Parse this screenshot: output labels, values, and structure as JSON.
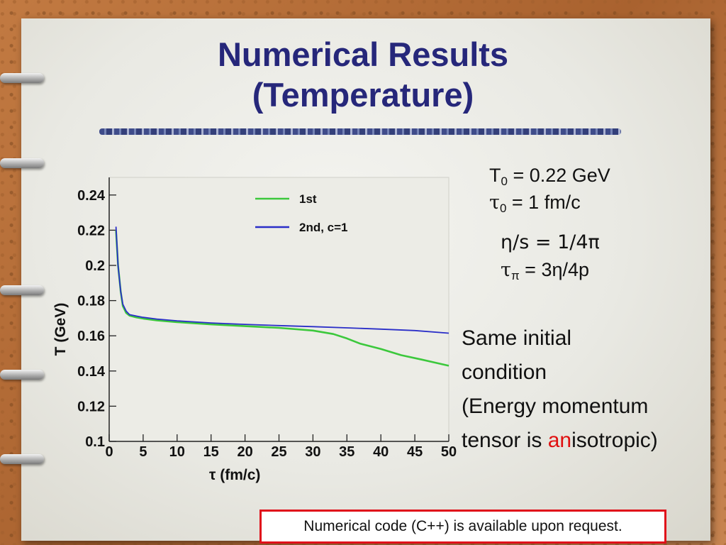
{
  "slide": {
    "title_line1": "Numerical Results",
    "title_line2": "(Temperature)",
    "params": {
      "T0_symbol": "T",
      "T0_sub": "0",
      "T0_value": " = 0.22 GeV",
      "tau0_symbol": "τ",
      "tau0_sub": "0",
      "tau0_value": " = 1 fm/c",
      "eta_s": "η/s = 1/4π",
      "tau_pi_symbol": "τ",
      "tau_pi_sub": "π",
      "tau_pi_value": " = 3η/4p"
    },
    "note": {
      "line1": "Same initial",
      "line2": "condition",
      "line3": "(Energy momentum",
      "line4_pre": "tensor is ",
      "line4_highlight": "an",
      "line4_post": "isotropic)"
    },
    "footer": "Numerical code (C++) is available upon request.",
    "colors": {
      "title": "#26277a",
      "highlight": "#e01010",
      "footer_border": "#e0101a"
    }
  },
  "chart_data": {
    "type": "line",
    "xlabel": "τ (fm/c)",
    "ylabel": "T (GeV)",
    "xlim": [
      0,
      50
    ],
    "ylim": [
      0.1,
      0.25
    ],
    "xticks": [
      0,
      5,
      10,
      15,
      20,
      25,
      30,
      35,
      40,
      45,
      50
    ],
    "yticks": [
      0.1,
      0.12,
      0.14,
      0.16,
      0.18,
      0.2,
      0.22,
      0.24
    ],
    "ytick_labels": [
      "0.1",
      "0.12",
      "0.14",
      "0.16",
      "0.18",
      "0.2",
      "0.22",
      "0.24"
    ],
    "legend_position": "top-right",
    "grid": false,
    "series": [
      {
        "name": "1st",
        "color": "#3cc83c",
        "x": [
          1,
          1.3,
          1.7,
          2,
          2.5,
          3,
          4,
          5,
          7,
          10,
          15,
          20,
          25,
          30,
          33,
          35,
          37,
          40,
          43,
          46,
          50
        ],
        "y": [
          0.22,
          0.2,
          0.185,
          0.177,
          0.173,
          0.1715,
          0.1705,
          0.1698,
          0.1688,
          0.1678,
          0.1665,
          0.1655,
          0.1645,
          0.163,
          0.161,
          0.1585,
          0.1555,
          0.1525,
          0.149,
          0.1465,
          0.143
        ]
      },
      {
        "name": "2nd, c=1",
        "color": "#2a2ec8",
        "x": [
          1,
          1.3,
          1.7,
          2,
          2.5,
          3,
          4,
          5,
          7,
          10,
          15,
          20,
          25,
          30,
          35,
          40,
          45,
          50
        ],
        "y": [
          0.222,
          0.2,
          0.185,
          0.178,
          0.174,
          0.172,
          0.1712,
          0.1705,
          0.1695,
          0.1685,
          0.1673,
          0.1665,
          0.1658,
          0.1652,
          0.1645,
          0.1638,
          0.163,
          0.1615
        ]
      }
    ]
  }
}
